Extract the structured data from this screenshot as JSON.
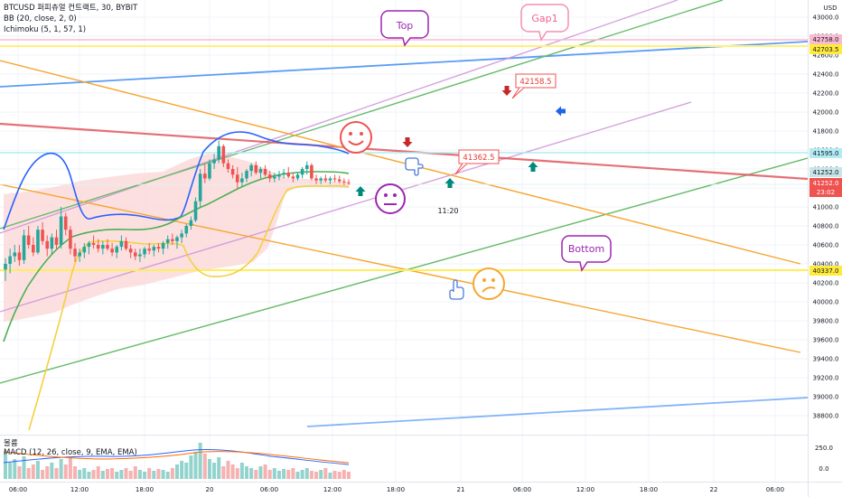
{
  "header": {
    "symbol_line": "BTCUSD 퍼피츄얼 컨트랙트, 30, BYBIT",
    "bb_line": "BB (20, close, 2, 0)",
    "ichimoku_line": "Ichimoku (5, 1, 57, 1)",
    "volume_label": "볼륨",
    "macd_line": "MACD (12, 26, close, 9, EMA, EMA)"
  },
  "axis": {
    "currency": "USD",
    "y_ticks": [
      "43000.0",
      "42800.0",
      "42600.0",
      "42400.0",
      "42200.0",
      "42000.0",
      "41800.0",
      "41600.0",
      "41400.0",
      "41200.0",
      "41000.0",
      "40800.0",
      "40600.0",
      "40400.0",
      "40200.0",
      "40000.0",
      "39800.0",
      "39600.0",
      "39400.0",
      "39200.0",
      "39000.0",
      "38800.0"
    ],
    "x_ticks": [
      "06:00",
      "12:00",
      "18:00",
      "20",
      "06:00",
      "12:00",
      "18:00",
      "21",
      "06:00",
      "12:00",
      "18:00",
      "22",
      "06:00"
    ],
    "macd_ticks": [
      "250.0",
      "0.0"
    ]
  },
  "price_tags": {
    "tag1": "42758.0",
    "tag2": "42703.5",
    "tag3": "41595.0",
    "tag4": "41252.0",
    "tag5": "41252.0",
    "tag5_sub": "23:02",
    "tag6": "40337.0"
  },
  "annotations": {
    "top_label": "Top",
    "gap_label": "Gap1",
    "bottom_label": "Bottom",
    "callout_1": "42158.5",
    "callout_2": "41362.5",
    "time_label": "11:20"
  },
  "colors": {
    "up_candle": "#26a69a",
    "down_candle": "#ef5350",
    "bb_line": "#2962ff",
    "ichimoku_green": "#4caf50",
    "ichimoku_yellow": "#ffeb3b",
    "cloud": "#f8d7da",
    "orange_line": "#f7a531",
    "green_line": "#66bb6a",
    "blue_line": "#5b9cf6",
    "violet_line": "#ce93d8",
    "red_line": "#e0575d",
    "annotation_purple": "#9c27b0",
    "annotation_pink": "#f06292"
  },
  "chart_data": {
    "type": "candlestick",
    "title": "BTCUSD 퍼피츄얼 컨트랙트, 30, BYBIT",
    "timeframe": "30",
    "ylim": [
      38700,
      43100
    ],
    "candles": [
      [
        40340,
        40460,
        40220,
        40400
      ],
      [
        40400,
        40560,
        40300,
        40480
      ],
      [
        40480,
        40600,
        40420,
        40520
      ],
      [
        40520,
        40600,
        40380,
        40440
      ],
      [
        40440,
        40760,
        40400,
        40700
      ],
      [
        40700,
        40800,
        40560,
        40600
      ],
      [
        40600,
        40680,
        40480,
        40520
      ],
      [
        40520,
        40800,
        40500,
        40760
      ],
      [
        40760,
        40840,
        40600,
        40640
      ],
      [
        40640,
        40700,
        40480,
        40560
      ],
      [
        40560,
        40720,
        40500,
        40680
      ],
      [
        40680,
        40760,
        40560,
        40600
      ],
      [
        40600,
        41000,
        40560,
        40900
      ],
      [
        40900,
        40940,
        40700,
        40760
      ],
      [
        40760,
        40800,
        40500,
        40560
      ],
      [
        40560,
        40620,
        40420,
        40480
      ],
      [
        40480,
        40560,
        40420,
        40520
      ],
      [
        40520,
        40620,
        40460,
        40580
      ],
      [
        40580,
        40640,
        40500,
        40620
      ],
      [
        40620,
        40700,
        40560,
        40600
      ],
      [
        40600,
        40660,
        40520,
        40560
      ],
      [
        40560,
        40640,
        40500,
        40600
      ],
      [
        40600,
        40660,
        40540,
        40560
      ],
      [
        40560,
        40620,
        40480,
        40520
      ],
      [
        40520,
        40600,
        40460,
        40580
      ],
      [
        40580,
        40700,
        40540,
        40640
      ],
      [
        40640,
        40680,
        40540,
        40560
      ],
      [
        40560,
        40600,
        40460,
        40520
      ],
      [
        40520,
        40560,
        40440,
        40480
      ],
      [
        40480,
        40560,
        40420,
        40500
      ],
      [
        40500,
        40580,
        40460,
        40560
      ],
      [
        40560,
        40620,
        40500,
        40540
      ],
      [
        40540,
        40600,
        40480,
        40580
      ],
      [
        40580,
        40620,
        40520,
        40560
      ],
      [
        40560,
        40640,
        40500,
        40620
      ],
      [
        40620,
        40700,
        40560,
        40660
      ],
      [
        40660,
        40720,
        40600,
        40640
      ],
      [
        40640,
        40700,
        40560,
        40680
      ],
      [
        40680,
        40760,
        40620,
        40720
      ],
      [
        40720,
        40820,
        40680,
        40800
      ],
      [
        40800,
        40900,
        40760,
        40860
      ],
      [
        40860,
        41100,
        40840,
        41060
      ],
      [
        41060,
        41400,
        41000,
        41350
      ],
      [
        41350,
        41450,
        41250,
        41300
      ],
      [
        41300,
        41500,
        41280,
        41460
      ],
      [
        41460,
        41560,
        41400,
        41500
      ],
      [
        41500,
        41700,
        41460,
        41640
      ],
      [
        41640,
        41660,
        41420,
        41460
      ],
      [
        41460,
        41500,
        41360,
        41400
      ],
      [
        41400,
        41440,
        41300,
        41340
      ],
      [
        41340,
        41420,
        41200,
        41260
      ],
      [
        41260,
        41360,
        41220,
        41300
      ],
      [
        41300,
        41400,
        41260,
        41380
      ],
      [
        41380,
        41460,
        41320,
        41440
      ],
      [
        41440,
        41480,
        41340,
        41360
      ],
      [
        41360,
        41420,
        41300,
        41400
      ],
      [
        41400,
        41440,
        41320,
        41340
      ],
      [
        41340,
        41380,
        41260,
        41300
      ],
      [
        41300,
        41360,
        41260,
        41320
      ],
      [
        41320,
        41380,
        41280,
        41340
      ],
      [
        41340,
        41400,
        41300,
        41360
      ],
      [
        41360,
        41420,
        41300,
        41320
      ],
      [
        41320,
        41360,
        41260,
        41300
      ],
      [
        41300,
        41360,
        41280,
        41340
      ],
      [
        41340,
        41420,
        41300,
        41400
      ],
      [
        41400,
        41480,
        41340,
        41440
      ],
      [
        41440,
        41460,
        41280,
        41300
      ],
      [
        41300,
        41340,
        41240,
        41280
      ],
      [
        41280,
        41320,
        41240,
        41300
      ],
      [
        41300,
        41340,
        41260,
        41280
      ],
      [
        41280,
        41320,
        41240,
        41300
      ],
      [
        41300,
        41340,
        41260,
        41290
      ],
      [
        41290,
        41330,
        41250,
        41270
      ],
      [
        41270,
        41300,
        41230,
        41260
      ],
      [
        41260,
        41290,
        41230,
        41252
      ]
    ],
    "bb_basis_end": 41310,
    "last_price": 41252.0,
    "horizontal_levels": [
      42758.0,
      42703.5,
      41595.0,
      41252.0,
      40337.0
    ]
  }
}
